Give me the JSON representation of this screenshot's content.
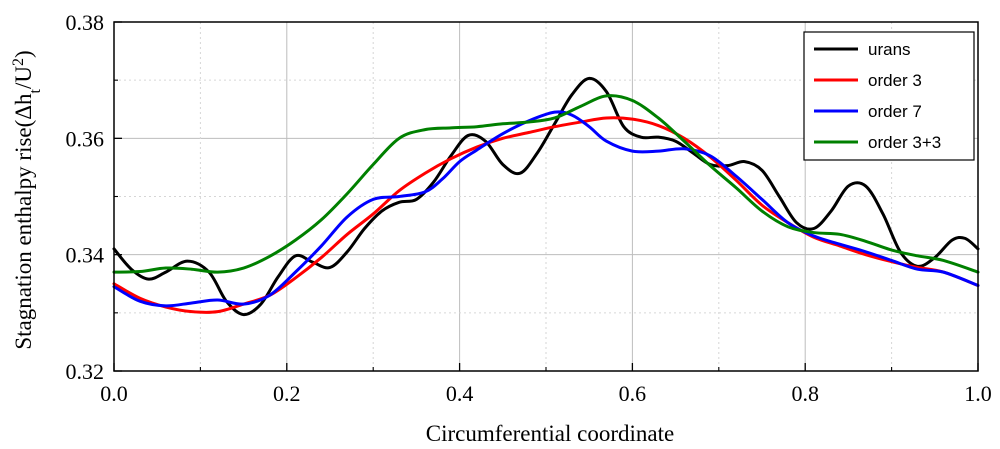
{
  "chart_data": {
    "type": "line",
    "title": "",
    "xlabel": "Circumferential coordinate",
    "ylabel": "Stagnation enthalpy rise(Δh_t/U^2)",
    "ylabel_parts": {
      "prefix": "Stagnation enthalpy rise(Δh",
      "sub": "t",
      "mid": "/U",
      "sup": "2",
      "suffix": ")"
    },
    "xlim": [
      0.0,
      1.0
    ],
    "ylim": [
      0.32,
      0.38
    ],
    "x_ticks": [
      "0.0",
      "0.2",
      "0.4",
      "0.6",
      "0.8",
      "1.0"
    ],
    "y_ticks": [
      "0.32",
      "0.34",
      "0.36",
      "0.38"
    ],
    "grid": true,
    "legend_position": "top-right",
    "series": [
      {
        "name": "urans",
        "color": "#000000",
        "x": [
          0.0,
          0.02,
          0.04,
          0.06,
          0.085,
          0.11,
          0.13,
          0.15,
          0.17,
          0.19,
          0.21,
          0.23,
          0.25,
          0.27,
          0.29,
          0.31,
          0.33,
          0.35,
          0.37,
          0.39,
          0.41,
          0.43,
          0.45,
          0.47,
          0.49,
          0.51,
          0.53,
          0.55,
          0.57,
          0.59,
          0.61,
          0.63,
          0.65,
          0.67,
          0.69,
          0.71,
          0.73,
          0.75,
          0.77,
          0.79,
          0.81,
          0.83,
          0.85,
          0.87,
          0.89,
          0.91,
          0.93,
          0.95,
          0.97,
          0.985,
          1.0
        ],
        "y": [
          0.341,
          0.3375,
          0.3358,
          0.337,
          0.3389,
          0.337,
          0.332,
          0.3297,
          0.3315,
          0.3362,
          0.3398,
          0.3387,
          0.3378,
          0.3405,
          0.3445,
          0.3475,
          0.349,
          0.3495,
          0.3525,
          0.357,
          0.3605,
          0.3595,
          0.3555,
          0.354,
          0.3575,
          0.3625,
          0.3675,
          0.3703,
          0.368,
          0.362,
          0.3602,
          0.3602,
          0.3595,
          0.3575,
          0.3555,
          0.3553,
          0.356,
          0.3545,
          0.35,
          0.3455,
          0.3445,
          0.3475,
          0.3518,
          0.3518,
          0.347,
          0.3405,
          0.338,
          0.3395,
          0.3425,
          0.3428,
          0.341
        ]
      },
      {
        "name": "order 3",
        "color": "#ff0000",
        "x": [
          0.0,
          0.03,
          0.06,
          0.09,
          0.12,
          0.15,
          0.18,
          0.21,
          0.24,
          0.27,
          0.3,
          0.33,
          0.36,
          0.39,
          0.42,
          0.45,
          0.48,
          0.51,
          0.54,
          0.57,
          0.6,
          0.63,
          0.66,
          0.69,
          0.72,
          0.75,
          0.78,
          0.81,
          0.84,
          0.87,
          0.9,
          0.93,
          0.96,
          1.0
        ],
        "y": [
          0.335,
          0.3325,
          0.331,
          0.3302,
          0.3302,
          0.3315,
          0.333,
          0.336,
          0.3395,
          0.3435,
          0.347,
          0.351,
          0.354,
          0.3565,
          0.3585,
          0.36,
          0.361,
          0.362,
          0.3628,
          0.3635,
          0.3633,
          0.3622,
          0.36,
          0.3568,
          0.3528,
          0.3485,
          0.3455,
          0.343,
          0.3415,
          0.34,
          0.3388,
          0.3378,
          0.337,
          0.3347
        ]
      },
      {
        "name": "order 7",
        "color": "#0000ff",
        "x": [
          0.0,
          0.03,
          0.06,
          0.09,
          0.12,
          0.15,
          0.18,
          0.21,
          0.24,
          0.27,
          0.3,
          0.33,
          0.36,
          0.38,
          0.4,
          0.42,
          0.45,
          0.48,
          0.51,
          0.53,
          0.55,
          0.57,
          0.6,
          0.63,
          0.66,
          0.69,
          0.72,
          0.75,
          0.78,
          0.81,
          0.84,
          0.87,
          0.9,
          0.93,
          0.96,
          1.0
        ],
        "y": [
          0.3345,
          0.332,
          0.3312,
          0.3317,
          0.3322,
          0.3315,
          0.333,
          0.337,
          0.3415,
          0.3465,
          0.3495,
          0.35,
          0.3508,
          0.353,
          0.356,
          0.358,
          0.3608,
          0.363,
          0.3645,
          0.364,
          0.362,
          0.3595,
          0.3578,
          0.3578,
          0.3582,
          0.357,
          0.3535,
          0.3495,
          0.3455,
          0.3432,
          0.3418,
          0.3405,
          0.339,
          0.3375,
          0.337,
          0.3347
        ]
      },
      {
        "name": "order 3+3",
        "color": "#008000",
        "x": [
          0.0,
          0.03,
          0.06,
          0.09,
          0.12,
          0.15,
          0.18,
          0.21,
          0.24,
          0.27,
          0.3,
          0.33,
          0.36,
          0.39,
          0.42,
          0.45,
          0.48,
          0.51,
          0.54,
          0.57,
          0.6,
          0.63,
          0.66,
          0.69,
          0.72,
          0.75,
          0.78,
          0.81,
          0.84,
          0.87,
          0.9,
          0.93,
          0.96,
          1.0
        ],
        "y": [
          0.337,
          0.3371,
          0.3377,
          0.3375,
          0.337,
          0.3377,
          0.3397,
          0.3425,
          0.346,
          0.3505,
          0.3555,
          0.36,
          0.3615,
          0.3618,
          0.362,
          0.3625,
          0.3628,
          0.3635,
          0.3655,
          0.3673,
          0.3665,
          0.3635,
          0.3595,
          0.3553,
          0.3515,
          0.3475,
          0.3448,
          0.3438,
          0.3435,
          0.3423,
          0.3408,
          0.3398,
          0.339,
          0.337
        ]
      }
    ]
  }
}
